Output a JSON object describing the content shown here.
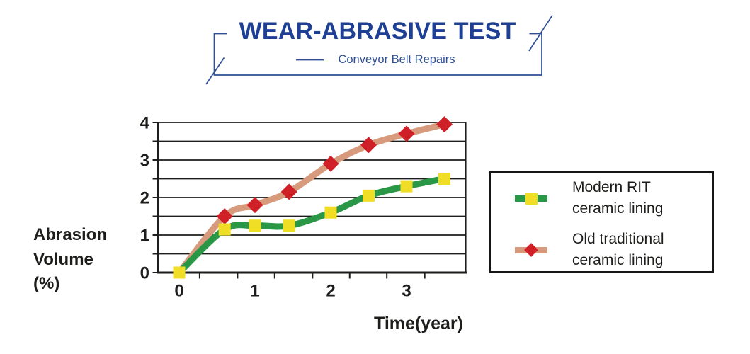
{
  "header": {
    "title": "WEAR-ABRASIVE TEST",
    "subtitle": "Conveyor Belt Repairs"
  },
  "colors": {
    "title_blue": "#1d3f94",
    "frame_blue": "#2e4f96",
    "axis_black": "#1d1d1b",
    "modern_line_green": "#2a9747",
    "modern_marker_yellow": "#f0dd26",
    "old_line_salmon": "#d89a7c",
    "old_marker_red": "#d02027",
    "legend_border": "#161616"
  },
  "axes": {
    "y_title": "Abrasion\nVolume\n(%)",
    "x_title": "Time(year)"
  },
  "legend": {
    "items": [
      {
        "label": "Modern RIT\nceramic lining",
        "marker": "square"
      },
      {
        "label": "Old traditional\nceramic lining",
        "marker": "diamond"
      }
    ]
  },
  "chart_data": {
    "type": "line",
    "title": "WEAR-ABRASIVE TEST",
    "subtitle": "Conveyor Belt Repairs",
    "xlabel": "Time(year)",
    "ylabel": "Abrasion Volume (%)",
    "xlim": [
      -0.28,
      3.78
    ],
    "ylim": [
      0,
      4
    ],
    "grid": "horizontal, every 0.5",
    "legend_position": "right",
    "x": [
      0,
      0.6,
      1.0,
      1.45,
      2.0,
      2.5,
      3.0,
      3.5
    ],
    "series": [
      {
        "name": "Old traditional ceramic lining",
        "marker": "diamond",
        "line_color": "#d89a7c",
        "marker_color": "#d02027",
        "hide_first_marker": true,
        "values": [
          0,
          1.5,
          1.8,
          2.15,
          2.9,
          3.4,
          3.7,
          3.95
        ]
      },
      {
        "name": "Modern RIT ceramic lining",
        "marker": "square",
        "line_color": "#2a9747",
        "marker_color": "#f0dd26",
        "hide_first_marker": false,
        "values": [
          0,
          1.15,
          1.25,
          1.25,
          1.6,
          2.05,
          2.3,
          2.5
        ]
      }
    ],
    "y_ticks": [
      {
        "value": 0,
        "label": "0"
      },
      {
        "value": 1,
        "label": "1"
      },
      {
        "value": 2,
        "label": "2"
      },
      {
        "value": 3,
        "label": "3"
      },
      {
        "value": 4,
        "label": "4"
      }
    ],
    "x_ticks": [
      {
        "value": 0,
        "label": "0"
      },
      {
        "value": 1,
        "label": "1"
      },
      {
        "value": 2,
        "label": "2"
      },
      {
        "value": 3,
        "label": "3"
      }
    ],
    "x_minor_ticks": [
      0.27,
      0.77,
      1.26,
      1.76,
      2.25,
      2.74,
      3.24
    ],
    "y_gridline_step": 0.5
  }
}
